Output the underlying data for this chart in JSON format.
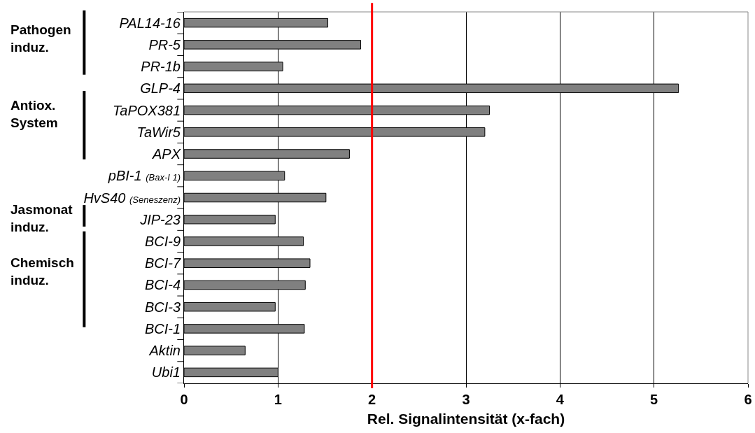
{
  "chart_data": {
    "type": "bar",
    "orientation": "horizontal",
    "xlabel": "Rel. Signalintensität (x-fach)",
    "categories": [
      "PAL14-16",
      "PR-5",
      "PR-1b",
      "GLP-4",
      "TaPOX381",
      "TaWir5",
      "APX",
      "pBI-1 (Bax-I 1)",
      "HvS40 (Seneszenz)",
      "JIP-23",
      "BCI-9",
      "BCI-7",
      "BCI-4",
      "BCI-3",
      "BCI-1",
      "Aktin",
      "Ubi1"
    ],
    "values": [
      1.53,
      1.88,
      1.05,
      5.26,
      3.25,
      3.2,
      1.76,
      1.07,
      1.51,
      0.97,
      1.27,
      1.34,
      1.29,
      0.97,
      1.28,
      0.65,
      1.0
    ],
    "color": "#808080",
    "xlim": [
      0,
      6
    ],
    "xticks": [
      0,
      1,
      2,
      3,
      4,
      5,
      6
    ],
    "grid": "x",
    "ref_lines": [
      {
        "axis": "x",
        "value": 2,
        "color": "#ff0000"
      }
    ],
    "annotations": [
      "Pathogen induz.",
      "Antiox. System",
      "Jasmonat induz.",
      "Chemisch induz."
    ]
  }
}
